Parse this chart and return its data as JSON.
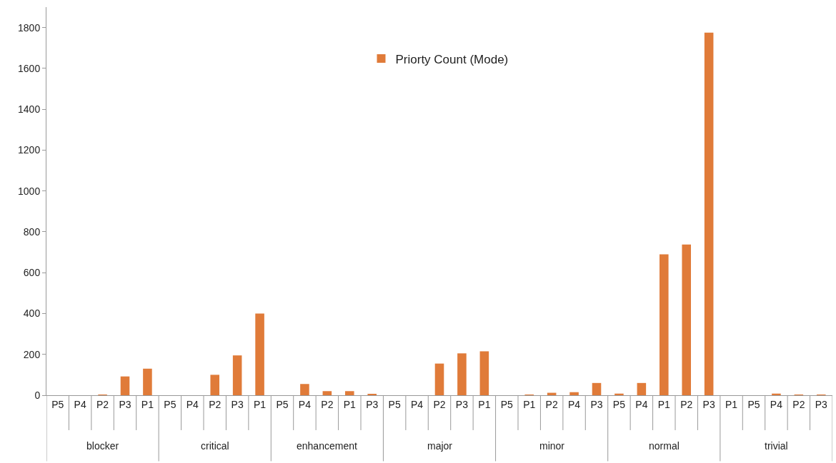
{
  "chart_data": {
    "type": "bar",
    "categories": [
      "P5",
      "P4",
      "P2",
      "P3",
      "P1",
      "P5",
      "P4",
      "P2",
      "P3",
      "P1",
      "P5",
      "P4",
      "P2",
      "P1",
      "P3",
      "P5",
      "P4",
      "P2",
      "P3",
      "P1",
      "P5",
      "P1",
      "P2",
      "P4",
      "P3",
      "P5",
      "P4",
      "P1",
      "P2",
      "P3",
      "P1",
      "P5",
      "P4",
      "P2",
      "P3"
    ],
    "annotations": [
      "blocker",
      "critical",
      "enhancement",
      "major",
      "minor",
      "normal",
      "trivial"
    ],
    "series": [
      {
        "name": "Priorty Count (Mode)",
        "color": "#e07b39",
        "values": [
          0,
          0,
          3,
          92,
          130,
          0,
          0,
          100,
          195,
          400,
          0,
          55,
          20,
          20,
          5,
          0,
          0,
          155,
          205,
          215,
          0,
          2,
          12,
          15,
          60,
          8,
          60,
          690,
          738,
          1775,
          0,
          0,
          8,
          2,
          2
        ]
      }
    ],
    "ylim": [
      0,
      1900
    ],
    "yticks": [
      0,
      200,
      400,
      600,
      800,
      1000,
      1200,
      1400,
      1600,
      1800
    ],
    "grid": false,
    "legend": "top"
  }
}
